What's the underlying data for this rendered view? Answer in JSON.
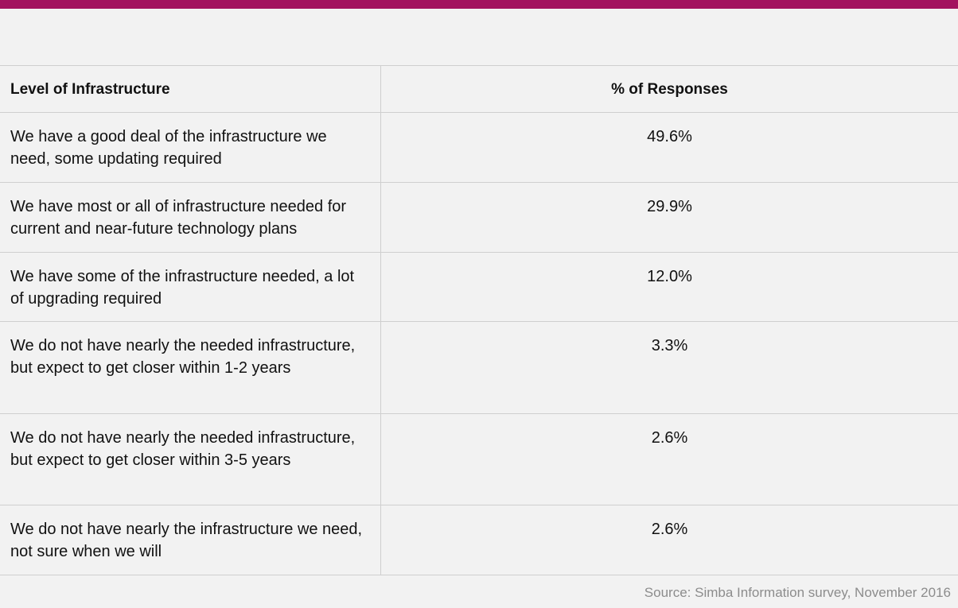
{
  "source": "Source: Simba Information survey, November 2016",
  "table": {
    "headers": {
      "level": "Level of Infrastructure",
      "responses": "% of Responses"
    },
    "rows": [
      {
        "label": "We have a good deal of the infrastructure we need, some updating required",
        "value": "49.6%"
      },
      {
        "label": "We have most or all of infrastructure needed for current and near-future technology plans",
        "value": "29.9%"
      },
      {
        "label": "We have some of the infrastructure needed, a lot of upgrading required",
        "value": "12.0%"
      },
      {
        "label": "We do not have nearly the needed infrastructure, but expect to get closer within 1-2 years",
        "value": "3.3%"
      },
      {
        "label": "We do not have nearly the needed infrastructure, but expect to get closer within 3-5 years",
        "value": "2.6%"
      },
      {
        "label": "We do not have nearly the infrastructure we need, not sure when we will",
        "value": "2.6%"
      }
    ]
  }
}
